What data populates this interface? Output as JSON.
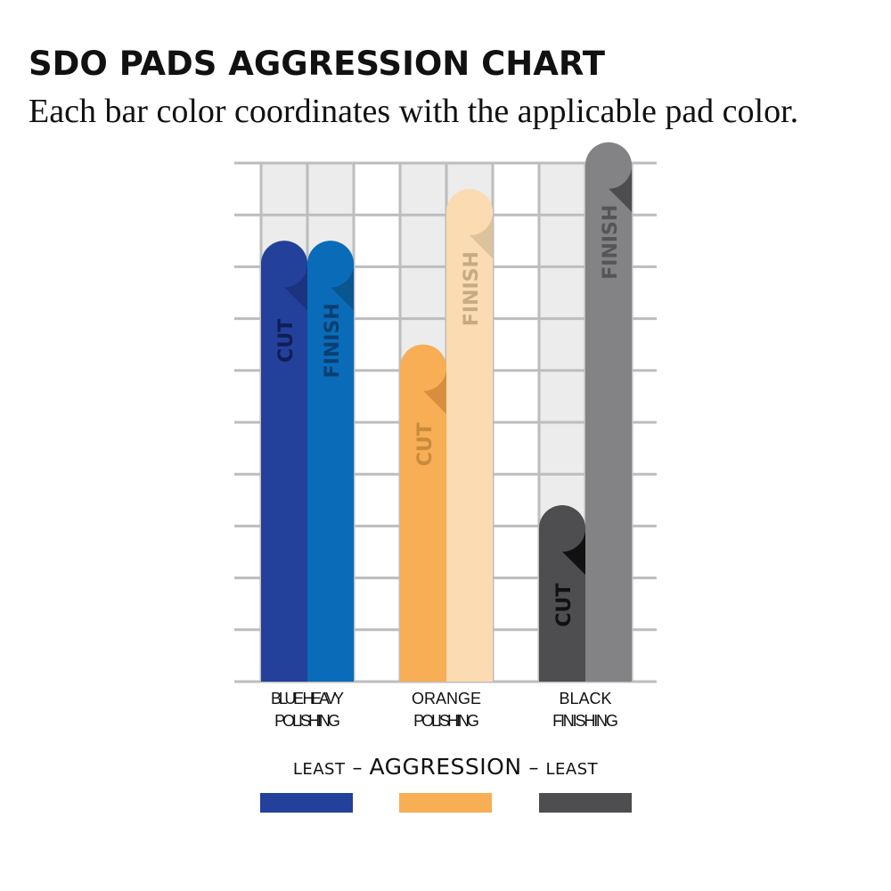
{
  "title": "SDO PADS AGGRESSION CHART",
  "subtitle": "Each bar color coordinates with the applicable pad color.",
  "chart_data": {
    "type": "bar",
    "ylim": [
      0,
      10
    ],
    "grid": true,
    "categories": [
      {
        "line1": "BLUE HEAVY",
        "line2": "POLISHING"
      },
      {
        "line1": "ORANGE",
        "line2": "POLISHING"
      },
      {
        "line1": "BLACK",
        "line2": "FINISHING"
      }
    ],
    "series": [
      {
        "name": "CUT",
        "values": [
          8.5,
          6.5,
          3.4
        ]
      },
      {
        "name": "FINISH",
        "values": [
          8.5,
          9.5,
          10.4
        ]
      }
    ],
    "colors": {
      "bars": [
        [
          "#23409a",
          "#0a6cb8"
        ],
        [
          "#f7ae55",
          "#fbdbb1"
        ],
        [
          "#4e4e50",
          "#838385"
        ]
      ],
      "folds": [
        [
          "#1c3380",
          "#095691"
        ],
        [
          "#d78f3f",
          "#dcc29d"
        ],
        [
          "#111111",
          "#4d4d50"
        ]
      ],
      "labels": [
        [
          "#0f1e55",
          "#0a3e72"
        ],
        [
          "#c98a3b",
          "#c8aa82"
        ],
        [
          "#111111",
          "#555557"
        ]
      ],
      "track": "#ececec",
      "grid": "#bdbdbd"
    }
  },
  "legend": {
    "left": "LEAST",
    "center": "AGGRESSION",
    "right": "LEAST",
    "dash": "–",
    "swatches": [
      "#23409a",
      "#f7ae55",
      "#4e4e50"
    ]
  }
}
